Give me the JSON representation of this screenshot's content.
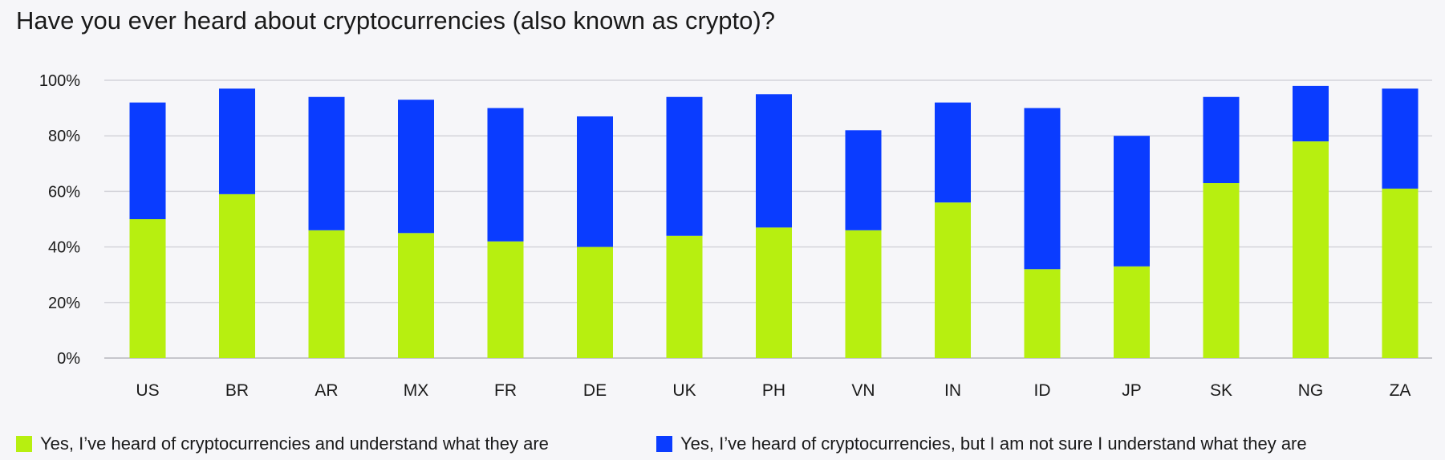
{
  "chart_data": {
    "type": "bar",
    "stacked": true,
    "title": "Have you ever heard about cryptocurrencies (also known as crypto)?",
    "categories": [
      "US",
      "BR",
      "AR",
      "MX",
      "FR",
      "DE",
      "UK",
      "PH",
      "VN",
      "IN",
      "ID",
      "JP",
      "SK",
      "NG",
      "ZA"
    ],
    "series": [
      {
        "name": "Yes, I’ve heard of cryptocurrencies and understand what they are",
        "color": "#b7ef10",
        "values": [
          50,
          59,
          46,
          45,
          42,
          40,
          44,
          47,
          46,
          56,
          32,
          33,
          63,
          78,
          61
        ]
      },
      {
        "name": "Yes, I’ve heard of cryptocurrencies, but I am not sure I understand what they are",
        "color": "#0a3cff",
        "values": [
          42,
          38,
          48,
          48,
          48,
          47,
          50,
          48,
          36,
          36,
          58,
          47,
          31,
          20,
          36
        ]
      }
    ],
    "yticks": [
      "0%",
      "20%",
      "40%",
      "60%",
      "80%",
      "100%"
    ],
    "ylim": [
      0,
      100
    ],
    "grid": true,
    "legend_position": "bottom"
  }
}
